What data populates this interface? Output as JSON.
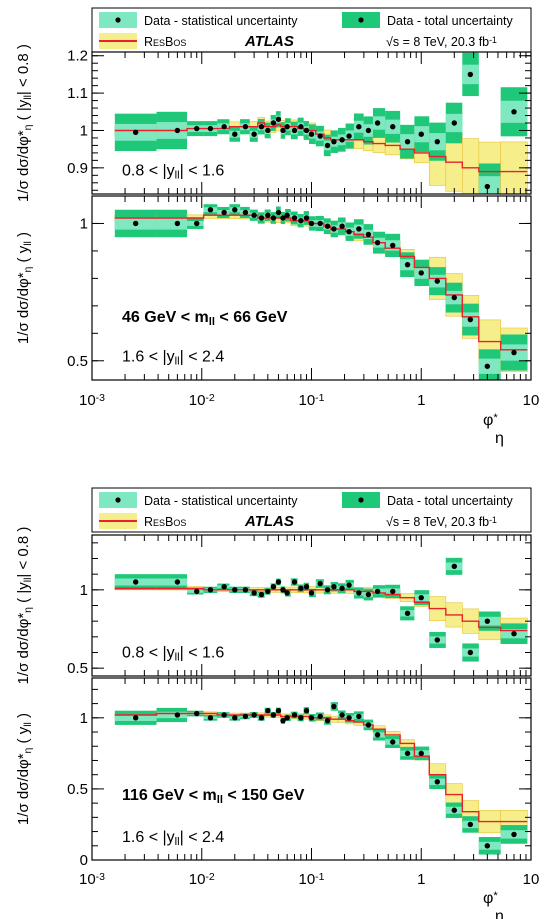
{
  "colors": {
    "stat_band": "#7fe8c0",
    "total_band": "#1ec878",
    "resbos_band": "#f5ee8a",
    "resbos_line": "#e8202a",
    "resbos_band_edge": "#e8c23a",
    "points": "#000000"
  },
  "legend": {
    "stat_label": "Data - statistical uncertainty",
    "total_label": "Data - total uncertainty",
    "resbos_label": "ResBos",
    "atlas_label": "ATLAS",
    "energy_label": "√s = 8 TeV, 20.3 fb⁻¹"
  },
  "chart_data": [
    {
      "type": "line",
      "mass_label": "46 GeV < m_ll < 66 GeV",
      "xlabel": "φ*_η",
      "xscale": "log",
      "xlim": [
        0.001,
        10
      ],
      "x_tick_labels": [
        "10⁻³",
        "10⁻²",
        "10⁻¹",
        "1",
        "10"
      ],
      "panels": [
        {
          "ylabel": "1/σ dσ/dφ*_η ( |y_ll| < 0.8 )",
          "region_label": "0.8 < |y_ll| < 1.6",
          "ylim": [
            0.83,
            1.21
          ],
          "y_ticks": [
            0.9,
            1.0,
            1.1,
            1.2
          ],
          "y_tick_labels": [
            "0.9",
            "1",
            "1.1",
            "1.2"
          ],
          "x": [
            0.0025,
            0.006,
            0.009,
            0.012,
            0.016,
            0.02,
            0.025,
            0.03,
            0.035,
            0.04,
            0.045,
            0.05,
            0.055,
            0.06,
            0.07,
            0.08,
            0.09,
            0.1,
            0.12,
            0.14,
            0.16,
            0.19,
            0.22,
            0.27,
            0.33,
            0.4,
            0.55,
            0.75,
            1.0,
            1.4,
            2.0,
            2.8,
            4.0,
            7.0
          ],
          "y": [
            0.995,
            1.0,
            1.005,
            1.005,
            1.01,
            0.99,
            1.01,
            0.99,
            1.01,
            1.0,
            1.02,
            1.03,
            1.0,
            1.01,
            1.0,
            1.01,
            1.0,
            0.99,
            0.985,
            0.96,
            0.97,
            0.975,
            0.985,
            1.01,
            1.0,
            1.02,
            1.01,
            0.97,
            0.99,
            0.97,
            1.02,
            1.15,
            0.85,
            1.05
          ],
          "resbos": [
            1.0,
            1.0,
            1.005,
            1.005,
            1.005,
            1.01,
            1.01,
            1.01,
            1.02,
            1.01,
            1.01,
            1.015,
            1.01,
            1.01,
            1.01,
            1.005,
            1.0,
            1.0,
            0.99,
            0.98,
            0.975,
            0.975,
            0.975,
            0.975,
            0.97,
            0.965,
            0.96,
            0.95,
            0.94,
            0.93,
            0.915,
            0.9,
            0.89,
            0.89
          ]
        },
        {
          "ylabel": "1/σ dσ/dφ*_η ( y_ll )",
          "region_label": "1.6 < |y_ll| < 2.4",
          "ylim": [
            0.43,
            1.1
          ],
          "y_ticks": [
            0.5,
            1.0
          ],
          "y_tick_labels": [
            "0.5",
            "1"
          ],
          "x": [
            0.0025,
            0.006,
            0.009,
            0.012,
            0.016,
            0.02,
            0.025,
            0.03,
            0.035,
            0.04,
            0.045,
            0.05,
            0.055,
            0.06,
            0.07,
            0.08,
            0.09,
            0.1,
            0.12,
            0.14,
            0.16,
            0.19,
            0.22,
            0.27,
            0.33,
            0.4,
            0.55,
            0.75,
            1.0,
            1.4,
            2.0,
            2.8,
            4.0,
            7.0
          ],
          "y": [
            1.0,
            1.0,
            1.0,
            1.05,
            1.04,
            1.05,
            1.04,
            1.03,
            1.02,
            1.03,
            1.02,
            1.04,
            1.02,
            1.03,
            1.02,
            1.01,
            1.02,
            1.0,
            1.0,
            0.99,
            0.98,
            0.99,
            0.97,
            0.98,
            0.96,
            0.93,
            0.92,
            0.85,
            0.82,
            0.79,
            0.73,
            0.65,
            0.48,
            0.53
          ],
          "resbos": [
            1.02,
            1.02,
            1.02,
            1.03,
            1.03,
            1.03,
            1.03,
            1.03,
            1.02,
            1.02,
            1.02,
            1.02,
            1.02,
            1.02,
            1.01,
            1.01,
            1.01,
            1.0,
            1.0,
            0.99,
            0.98,
            0.98,
            0.97,
            0.96,
            0.95,
            0.93,
            0.91,
            0.88,
            0.84,
            0.8,
            0.74,
            0.66,
            0.57,
            0.54
          ]
        }
      ]
    },
    {
      "type": "line",
      "mass_label": "116 GeV < m_ll < 150 GeV",
      "xlabel": "φ*_η",
      "xscale": "log",
      "xlim": [
        0.001,
        10
      ],
      "x_tick_labels": [
        "10⁻³",
        "10⁻²",
        "10⁻¹",
        "1",
        "10"
      ],
      "panels": [
        {
          "ylabel": "1/σ dσ/dφ*_η ( |y_ll| < 0.8 )",
          "region_label": "0.8 < |y_ll| < 1.6",
          "ylim": [
            0.45,
            1.35
          ],
          "y_ticks": [
            0.5,
            1.0
          ],
          "y_tick_labels": [
            "0.5",
            "1"
          ],
          "x": [
            0.0025,
            0.006,
            0.009,
            0.012,
            0.016,
            0.02,
            0.025,
            0.03,
            0.035,
            0.04,
            0.045,
            0.05,
            0.055,
            0.06,
            0.07,
            0.08,
            0.09,
            0.1,
            0.12,
            0.14,
            0.16,
            0.19,
            0.22,
            0.27,
            0.33,
            0.4,
            0.55,
            0.75,
            1.0,
            1.4,
            2.0,
            2.8,
            4.0,
            7.0
          ],
          "y": [
            1.05,
            1.05,
            0.99,
            1.0,
            1.02,
            1.0,
            1.0,
            0.98,
            0.97,
            0.99,
            1.02,
            1.05,
            1.0,
            0.98,
            1.05,
            1.01,
            1.02,
            0.98,
            1.04,
            1.0,
            1.02,
            1.01,
            1.03,
            0.98,
            0.97,
            0.99,
            0.99,
            0.85,
            0.95,
            0.68,
            1.15,
            0.6,
            0.8,
            0.72
          ],
          "resbos": [
            1.01,
            1.01,
            1.01,
            1.0,
            1.0,
            1.0,
            1.0,
            1.0,
            1.0,
            1.0,
            1.0,
            1.0,
            1.0,
            1.0,
            1.0,
            1.0,
            1.0,
            1.0,
            1.0,
            1.0,
            1.0,
            1.0,
            1.0,
            0.99,
            0.99,
            0.98,
            0.97,
            0.95,
            0.92,
            0.88,
            0.84,
            0.8,
            0.76,
            0.74
          ]
        },
        {
          "ylabel": "1/σ dσ/dφ*_η ( y_ll )",
          "region_label": "1.6 < |y_ll| < 2.4",
          "ylim": [
            0.0,
            1.28
          ],
          "y_ticks": [
            0.0,
            0.5,
            1.0
          ],
          "y_tick_labels": [
            "0",
            "0.5",
            "1"
          ],
          "x": [
            0.0025,
            0.006,
            0.009,
            0.012,
            0.016,
            0.02,
            0.025,
            0.03,
            0.035,
            0.04,
            0.045,
            0.05,
            0.055,
            0.06,
            0.07,
            0.08,
            0.09,
            0.1,
            0.12,
            0.14,
            0.16,
            0.19,
            0.22,
            0.27,
            0.33,
            0.4,
            0.55,
            0.75,
            1.0,
            1.4,
            2.0,
            2.8,
            4.0,
            7.0
          ],
          "y": [
            1.0,
            1.02,
            1.03,
            1.0,
            1.02,
            1.0,
            1.01,
            1.02,
            1.0,
            1.05,
            1.02,
            1.05,
            0.98,
            1.0,
            1.02,
            1.0,
            1.05,
            1.0,
            1.01,
            0.98,
            1.08,
            1.02,
            1.0,
            1.01,
            0.95,
            0.88,
            0.83,
            0.75,
            0.75,
            0.55,
            0.35,
            0.25,
            0.1,
            0.18
          ],
          "resbos": [
            1.02,
            1.03,
            1.03,
            1.03,
            1.02,
            1.02,
            1.02,
            1.02,
            1.02,
            1.02,
            1.02,
            1.02,
            1.01,
            1.01,
            1.01,
            1.01,
            1.01,
            1.0,
            1.0,
            1.0,
            0.99,
            0.99,
            0.98,
            0.97,
            0.95,
            0.92,
            0.88,
            0.82,
            0.73,
            0.6,
            0.46,
            0.34,
            0.27,
            0.27
          ]
        }
      ]
    }
  ]
}
